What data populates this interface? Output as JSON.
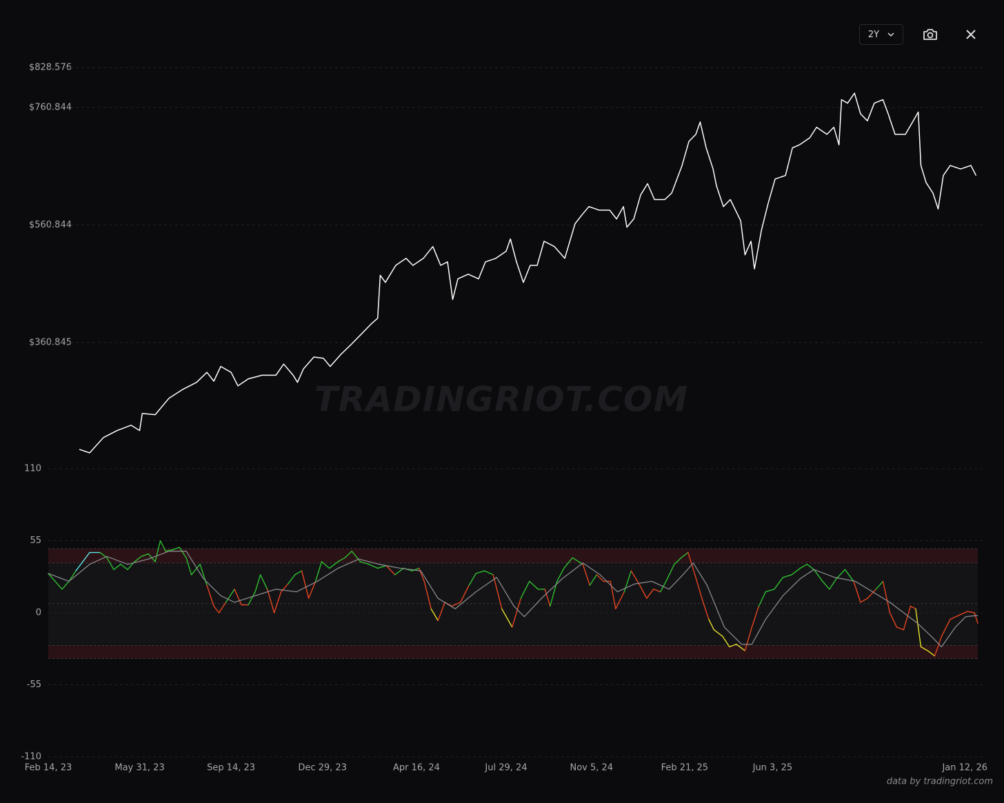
{
  "toolbar": {
    "range": "2Y"
  },
  "watermark": "TRADINGRIOT.COM",
  "footer": "data by tradingriot.com",
  "chart_data": [
    {
      "type": "line",
      "xlim": [
        0,
        1078
      ],
      "ylim": [
        146,
        838
      ],
      "yticks": [
        {
          "value": 828.576,
          "label": "$828.576"
        },
        {
          "value": 760.844,
          "label": "$760.844"
        },
        {
          "value": 560.844,
          "label": "$560.844"
        },
        {
          "value": 360.845,
          "label": "$360.845"
        }
      ],
      "grid": true,
      "series": [
        {
          "color": "#ffffff",
          "x": [
            36,
            48,
            64,
            80,
            96,
            106,
            109,
            124,
            140,
            156,
            172,
            184,
            192,
            200,
            212,
            220,
            232,
            248,
            264,
            273,
            284,
            289,
            296,
            308,
            319,
            327,
            339,
            351,
            363,
            375,
            382,
            385,
            391,
            403,
            415,
            423,
            435,
            446,
            455,
            463,
            469,
            475,
            487,
            499,
            507,
            519,
            531,
            536,
            543,
            551,
            559,
            567,
            575,
            587,
            599,
            611,
            619,
            627,
            639,
            651,
            659,
            667,
            671,
            679,
            687,
            695,
            703,
            715,
            723,
            735,
            743,
            751,
            756,
            763,
            771,
            775,
            783,
            791,
            803,
            808,
            815,
            819,
            827,
            835,
            843,
            855,
            863,
            871,
            883,
            891,
            903,
            911,
            917,
            920,
            927,
            935,
            942,
            950,
            958,
            968,
            974,
            982,
            994,
            1002,
            1009,
            1012,
            1018,
            1026,
            1032,
            1038,
            1046,
            1058,
            1070,
            1076
          ],
          "values": [
            179,
            173,
            199,
            211,
            220,
            211,
            240,
            238,
            266,
            281,
            293,
            310,
            295,
            320,
            310,
            287,
            299,
            305,
            305,
            324,
            305,
            293,
            316,
            336,
            334,
            320,
            340,
            357,
            375,
            393,
            402,
            475,
            463,
            492,
            504,
            492,
            504,
            524,
            492,
            498,
            434,
            469,
            477,
            469,
            498,
            504,
            516,
            537,
            498,
            463,
            492,
            492,
            533,
            524,
            504,
            563,
            578,
            592,
            586,
            586,
            571,
            592,
            557,
            571,
            612,
            631,
            604,
            604,
            615,
            662,
            703,
            715,
            736,
            692,
            656,
            627,
            592,
            604,
            568,
            510,
            533,
            486,
            551,
            598,
            639,
            645,
            692,
            697,
            709,
            727,
            715,
            727,
            697,
            774,
            768,
            785,
            750,
            738,
            768,
            774,
            750,
            715,
            715,
            735,
            753,
            662,
            633,
            615,
            588,
            645,
            662,
            656,
            662,
            645
          ]
        }
      ]
    },
    {
      "type": "line",
      "xlim": [
        0,
        1078
      ],
      "ylim": [
        -110,
        110
      ],
      "yticks": [
        110,
        55,
        0,
        -55,
        -110
      ],
      "xticks": [
        {
          "value": 0,
          "label": "Feb 14, 23"
        },
        {
          "value": 106,
          "label": "May 31, 23"
        },
        {
          "value": 212,
          "label": "Sep 14, 23"
        },
        {
          "value": 318,
          "label": "Dec 29, 23"
        },
        {
          "value": 427,
          "label": "Apr 16, 24"
        },
        {
          "value": 531,
          "label": "Jul 29, 24"
        },
        {
          "value": 630,
          "label": "Nov 5, 24"
        },
        {
          "value": 738,
          "label": "Feb 21, 25"
        },
        {
          "value": 840,
          "label": "Jun 3, 25"
        },
        {
          "value": 1063,
          "label": "Jan 12, 26"
        }
      ],
      "grid": true,
      "bands": [
        {
          "from": 38,
          "to": 49,
          "color": "#2b1216"
        },
        {
          "from": -35,
          "to": -25,
          "color": "#2b1216"
        }
      ],
      "zone_color": "#141417",
      "midline": 7,
      "series": [
        {
          "x": [
            0,
            8,
            16,
            24,
            32,
            40,
            48,
            60,
            68,
            76,
            84,
            92,
            100,
            108,
            116,
            124,
            130,
            136,
            144,
            152,
            160,
            166,
            176,
            184,
            192,
            198,
            206,
            216,
            224,
            232,
            240,
            246,
            254,
            262,
            270,
            278,
            286,
            294,
            302,
            310,
            317,
            326,
            336,
            344,
            352,
            362,
            372,
            382,
            392,
            402,
            412,
            422,
            430,
            436,
            444,
            452,
            460,
            468,
            478,
            488,
            496,
            506,
            516,
            526,
            538,
            548,
            558,
            568,
            576,
            582,
            590,
            598,
            608,
            620,
            628,
            636,
            644,
            652,
            658,
            668,
            676,
            686,
            694,
            702,
            710,
            718,
            726,
            734,
            742,
            750,
            758,
            766,
            772,
            782,
            790,
            798,
            808,
            816,
            824,
            832,
            842,
            852,
            862,
            872,
            880,
            888,
            898,
            906,
            914,
            924,
            934,
            942,
            950,
            960,
            968,
            976,
            984,
            992,
            1000,
            1006,
            1012,
            1020,
            1028,
            1036,
            1046,
            1056,
            1066,
            1074,
            1078
          ],
          "values": [
            30,
            24,
            18,
            24,
            32,
            39,
            46,
            46,
            42,
            33,
            37,
            33,
            39,
            43,
            45,
            39,
            55,
            47,
            48,
            50,
            42,
            29,
            37,
            21,
            5,
            0,
            8,
            18,
            6,
            6,
            16,
            29,
            18,
            0,
            16,
            22,
            29,
            32,
            11,
            24,
            39,
            34,
            39,
            42,
            47,
            39,
            37,
            34,
            36,
            29,
            34,
            32,
            34,
            24,
            3,
            -6,
            8,
            5,
            8,
            21,
            30,
            32,
            29,
            3,
            -11,
            11,
            24,
            18,
            18,
            5,
            24,
            34,
            42,
            37,
            21,
            29,
            24,
            24,
            3,
            16,
            32,
            21,
            11,
            18,
            16,
            26,
            37,
            42,
            46,
            29,
            11,
            -5,
            -13,
            -18,
            -26,
            -24,
            -29,
            -11,
            5,
            16,
            18,
            27,
            29,
            34,
            37,
            33,
            24,
            18,
            26,
            33,
            24,
            8,
            11,
            18,
            24,
            0,
            -11,
            -13,
            5,
            3,
            -26,
            -29,
            -33,
            -18,
            -5,
            -2,
            1,
            0,
            -8
          ],
          "colors": [
            "#2fc12f",
            "#2fc12f",
            "#2fc12f",
            "#2fc12f",
            "#2fc12f",
            "#5ee6e6",
            "#5ee6e6",
            "#5ee6e6",
            "#2fc12f",
            "#2fc12f",
            "#2fc12f",
            "#2fc12f",
            "#2fc12f",
            "#2fc12f",
            "#2fc12f",
            "#2fc12f",
            "#2fc12f",
            "#2fc12f",
            "#2fc12f",
            "#2fc12f",
            "#2fc12f",
            "#2fc12f",
            "#2fc12f",
            "#2fc12f",
            "#e8451e",
            "#e8451e",
            "#e8451e",
            "#2fc12f",
            "#e8451e",
            "#e8451e",
            "#2fc12f",
            "#2fc12f",
            "#2fc12f",
            "#e8451e",
            "#e8451e",
            "#e8451e",
            "#2fc12f",
            "#2fc12f",
            "#e8451e",
            "#e8451e",
            "#2fc12f",
            "#2fc12f",
            "#2fc12f",
            "#2fc12f",
            "#2fc12f",
            "#2fc12f",
            "#2fc12f",
            "#2fc12f",
            "#2fc12f",
            "#e8451e",
            "#2fc12f",
            "#2fc12f",
            "#2fc12f",
            "#e8451e",
            "#e8451e",
            "#e6e02a",
            "#e8451e",
            "#e8451e",
            "#e8451e",
            "#e8451e",
            "#2fc12f",
            "#2fc12f",
            "#2fc12f",
            "#e8451e",
            "#e6e02a",
            "#e8451e",
            "#2fc12f",
            "#2fc12f",
            "#2fc12f",
            "#e8451e",
            "#2fc12f",
            "#2fc12f",
            "#2fc12f",
            "#2fc12f",
            "#e8451e",
            "#2fc12f",
            "#e8451e",
            "#e8451e",
            "#e8451e",
            "#e8451e",
            "#2fc12f",
            "#e8451e",
            "#e8451e",
            "#e8451e",
            "#e8451e",
            "#2fc12f",
            "#2fc12f",
            "#2fc12f",
            "#2fc12f",
            "#e8451e",
            "#e8451e",
            "#e8451e",
            "#e6e02a",
            "#e6e02a",
            "#e6e02a",
            "#e6e02a",
            "#e6e02a",
            "#e8451e",
            "#e8451e",
            "#2fc12f",
            "#2fc12f",
            "#2fc12f",
            "#2fc12f",
            "#2fc12f",
            "#2fc12f",
            "#2fc12f",
            "#2fc12f",
            "#2fc12f",
            "#2fc12f",
            "#2fc12f",
            "#2fc12f",
            "#e8451e",
            "#e8451e",
            "#e8451e",
            "#2fc12f",
            "#e8451e",
            "#e8451e",
            "#e8451e",
            "#e8451e",
            "#e8451e",
            "#e6e02a",
            "#e6e02a",
            "#e6e02a",
            "#e8451e",
            "#e8451e",
            "#e8451e",
            "#e8451e",
            "#e8451e",
            "#e8451e"
          ]
        },
        {
          "color": "#8a8a8e",
          "x": [
            0,
            24,
            48,
            68,
            92,
            116,
            140,
            160,
            180,
            200,
            216,
            240,
            264,
            288,
            312,
            336,
            360,
            384,
            408,
            432,
            452,
            472,
            496,
            520,
            540,
            552,
            572,
            596,
            620,
            640,
            660,
            680,
            700,
            720,
            736,
            748,
            764,
            784,
            804,
            816,
            832,
            852,
            872,
            888,
            912,
            936,
            956,
            976,
            992,
            1008,
            1024,
            1036,
            1052,
            1064,
            1078
          ],
          "values": [
            30,
            24,
            37,
            43,
            37,
            41,
            47,
            47,
            26,
            13,
            8,
            13,
            18,
            16,
            24,
            34,
            41,
            37,
            34,
            32,
            11,
            3,
            16,
            27,
            5,
            -3,
            11,
            26,
            38,
            29,
            16,
            22,
            24,
            18,
            29,
            38,
            21,
            -11,
            -24,
            -24,
            -5,
            13,
            26,
            33,
            27,
            24,
            16,
            8,
            0,
            -8,
            -18,
            -26,
            -11,
            -3,
            -2
          ]
        }
      ]
    }
  ]
}
